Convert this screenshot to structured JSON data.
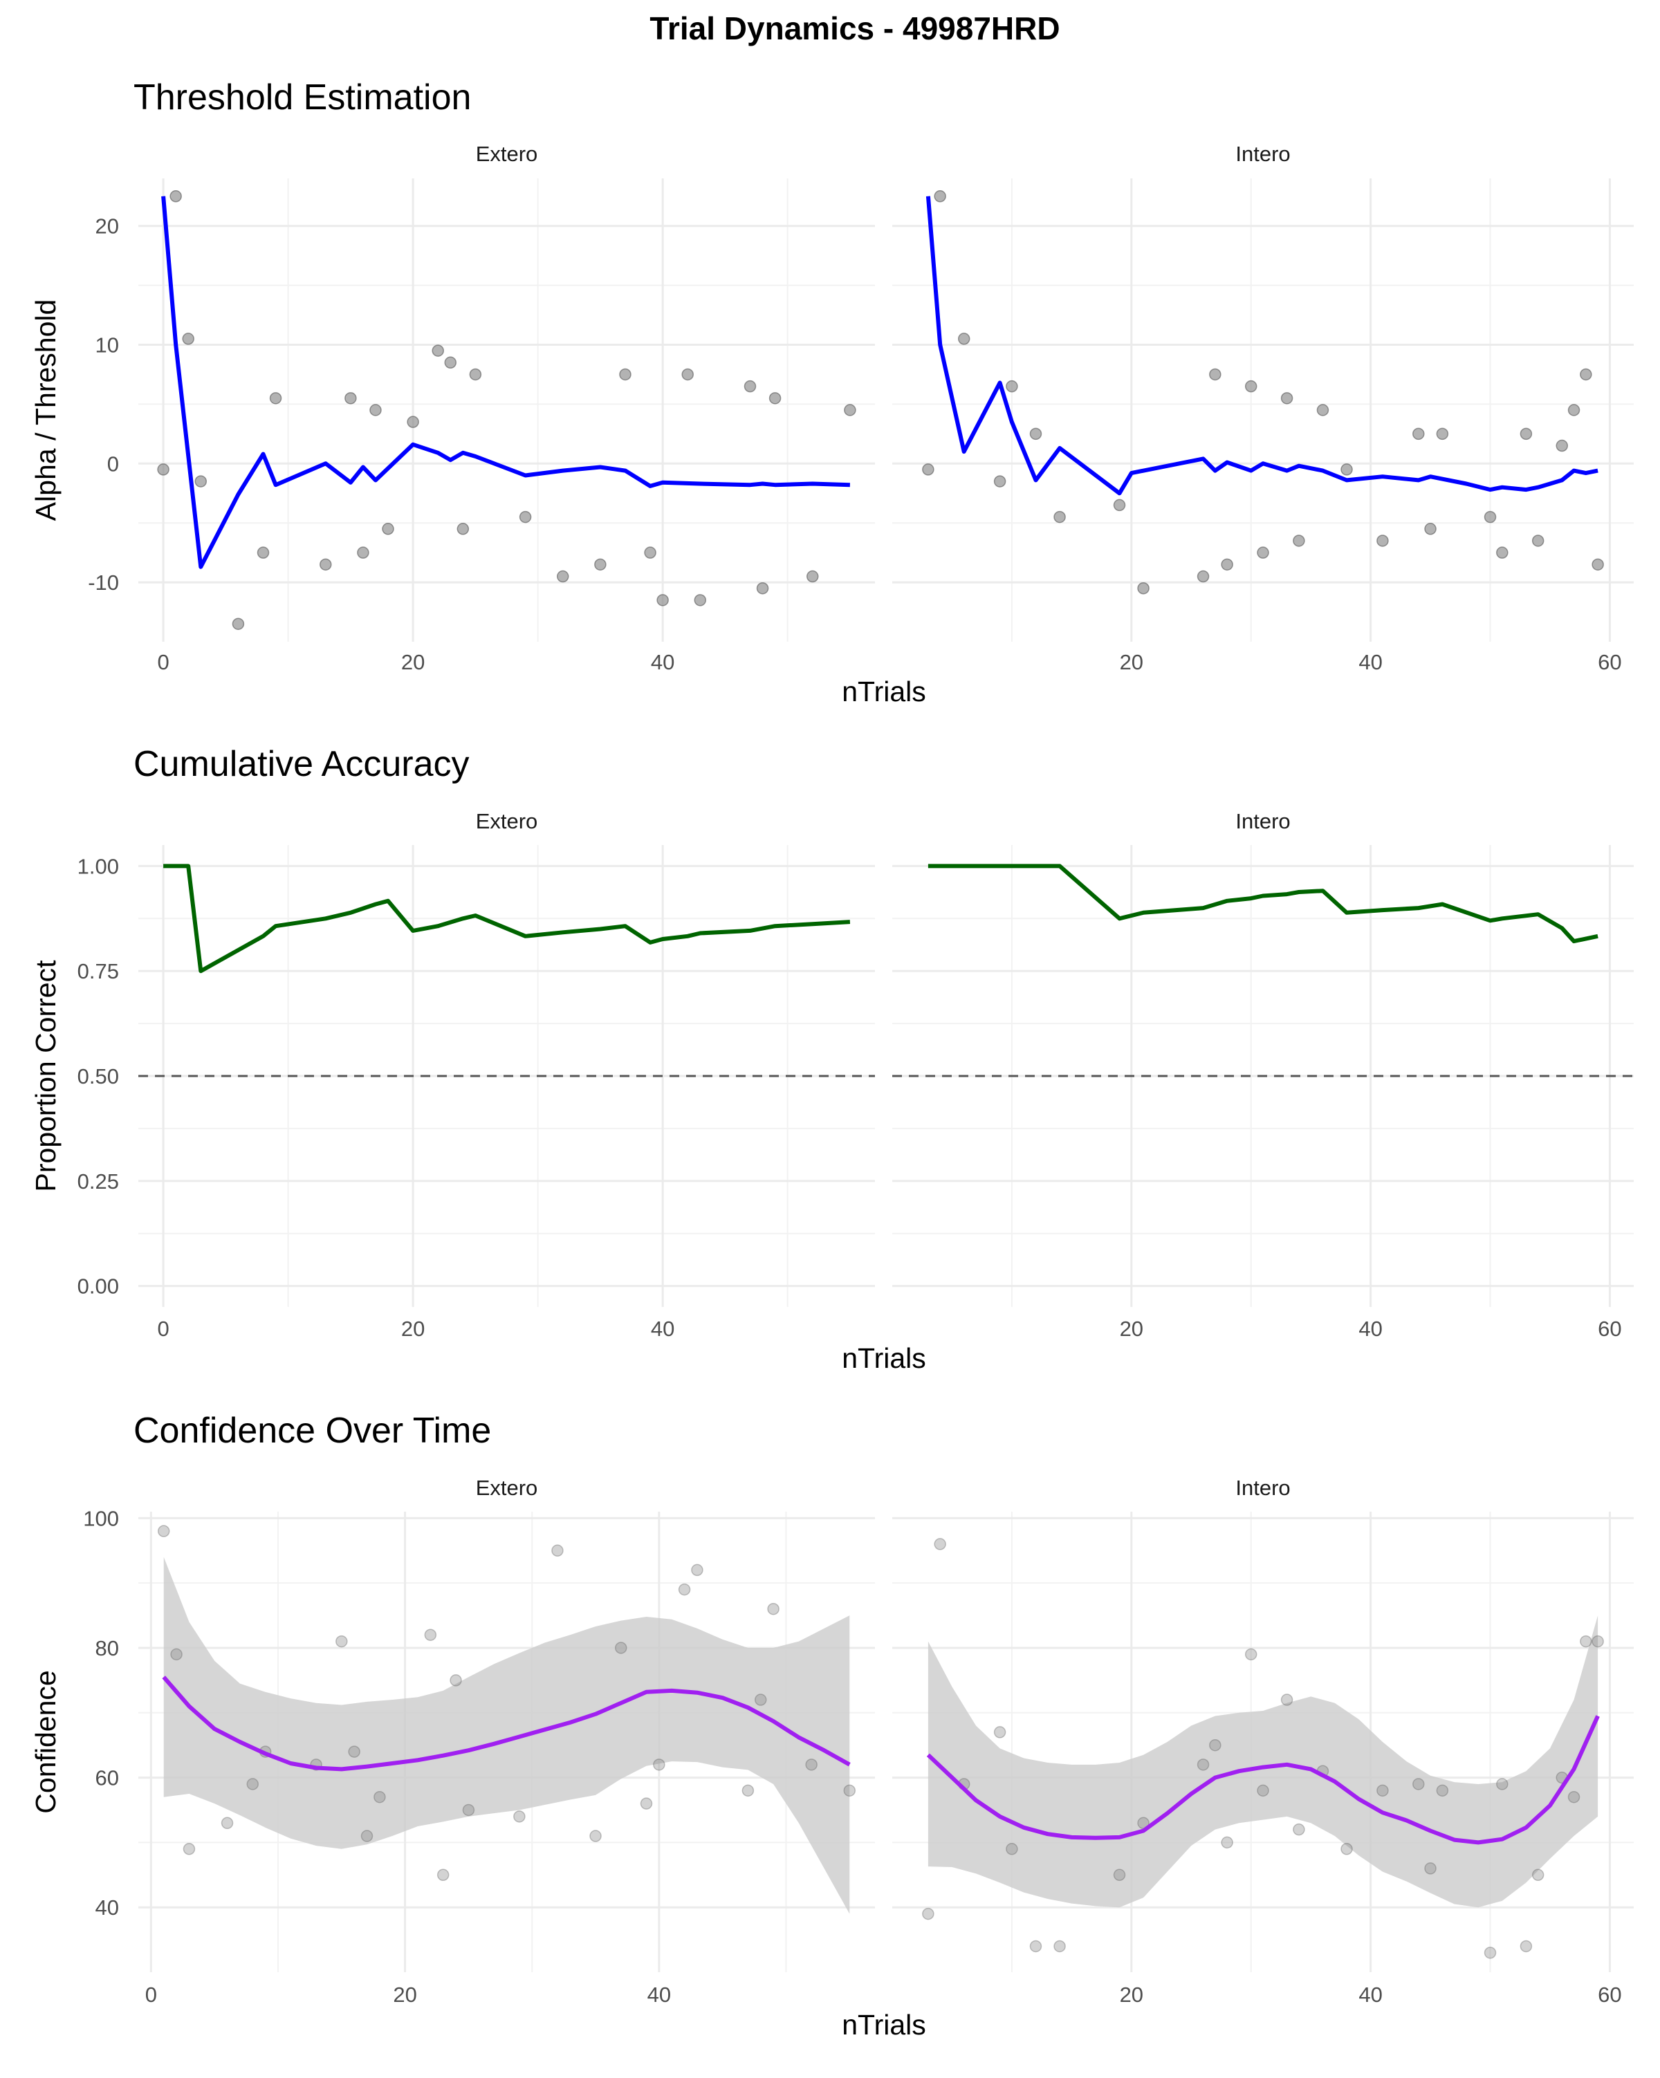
{
  "figure": {
    "title": "Trial Dynamics - 49987HRD",
    "facet_labels": [
      "Extero",
      "Intero"
    ]
  },
  "colors": {
    "threshold_line": "#0000ff",
    "accuracy_line": "#006400",
    "confidence_line": "#a020f0",
    "points": "#808080",
    "ribbon": "#cccccc",
    "chance_line": "#555555",
    "grid": "#ebebeb"
  },
  "chart_data": [
    {
      "type": "line",
      "title": "Threshold Estimation",
      "xlabel": "nTrials",
      "ylabel": "Alpha / Threshold",
      "ylim": [
        -15,
        24
      ],
      "yticks": [
        -10,
        0,
        10,
        20
      ],
      "ytick_labels": [
        "-10",
        "0",
        "10",
        "20"
      ],
      "grid": true,
      "panels": [
        {
          "facet": "Extero",
          "xlim": [
            -2,
            57
          ],
          "xticks": [
            0,
            20,
            40
          ],
          "series": [
            {
              "kind": "line",
              "x": [
                0,
                1,
                3,
                6,
                8,
                9,
                13,
                15,
                16,
                17,
                20,
                22,
                23,
                24,
                25,
                29,
                32,
                35,
                37,
                39,
                40,
                43,
                47,
                48,
                49,
                52,
                55
              ],
              "y": [
                22.5,
                10,
                -8.7,
                -2.6,
                0.8,
                -1.8,
                0,
                -1.6,
                -0.3,
                -1.4,
                1.6,
                0.9,
                0.3,
                0.9,
                0.6,
                -1,
                -0.6,
                -0.3,
                -0.6,
                -1.9,
                -1.6,
                -1.7,
                -1.8,
                -1.7,
                -1.8,
                -1.7,
                -1.8
              ]
            },
            {
              "kind": "points",
              "x": [
                0,
                1,
                2,
                3,
                6,
                8,
                9,
                13,
                15,
                16,
                17,
                18,
                20,
                22,
                23,
                24,
                25,
                29,
                32,
                35,
                37,
                39,
                40,
                42,
                43,
                47,
                48,
                49,
                52,
                55
              ],
              "y": [
                -0.5,
                22.5,
                10.5,
                -1.5,
                -13.5,
                -7.5,
                5.5,
                -8.5,
                5.5,
                -7.5,
                4.5,
                -5.5,
                3.5,
                9.5,
                8.5,
                -5.5,
                7.5,
                -4.5,
                -9.5,
                -8.5,
                7.5,
                -7.5,
                -11.5,
                7.5,
                -11.5,
                6.5,
                -10.5,
                5.5,
                -9.5,
                4.5
              ]
            }
          ]
        },
        {
          "facet": "Intero",
          "xlim": [
            0,
            62
          ],
          "xticks": [
            20,
            40,
            60
          ],
          "series": [
            {
              "kind": "line",
              "x": [
                3,
                4,
                6,
                9,
                10,
                12,
                14,
                19,
                20,
                26,
                27,
                28,
                30,
                31,
                33,
                34,
                36,
                38,
                41,
                44,
                45,
                48,
                50,
                51,
                53,
                54,
                56,
                57,
                58,
                59
              ],
              "y": [
                22.5,
                10,
                1,
                6.8,
                3.5,
                -1.4,
                1.3,
                -2.5,
                -0.8,
                0.4,
                -0.6,
                0.1,
                -0.6,
                0,
                -0.6,
                -0.2,
                -0.6,
                -1.4,
                -1.1,
                -1.4,
                -1.1,
                -1.7,
                -2.2,
                -2,
                -2.2,
                -2,
                -1.4,
                -0.6,
                -0.8,
                -0.6
              ]
            },
            {
              "kind": "points",
              "x": [
                3,
                4,
                6,
                9,
                10,
                12,
                14,
                19,
                21,
                26,
                27,
                28,
                30,
                31,
                33,
                34,
                36,
                38,
                41,
                44,
                45,
                46,
                50,
                51,
                53,
                54,
                56,
                57,
                58,
                59
              ],
              "y": [
                -0.5,
                22.5,
                10.5,
                -1.5,
                6.5,
                2.5,
                -4.5,
                -3.5,
                -10.5,
                -9.5,
                7.5,
                -8.5,
                6.5,
                -7.5,
                5.5,
                -6.5,
                4.5,
                -0.5,
                -6.5,
                2.5,
                -5.5,
                2.5,
                -4.5,
                -7.5,
                2.5,
                -6.5,
                1.5,
                4.5,
                7.5,
                -8.5
              ]
            }
          ]
        }
      ]
    },
    {
      "type": "line",
      "title": "Cumulative Accuracy",
      "xlabel": "nTrials",
      "ylabel": "Proportion Correct",
      "ylim": [
        -0.05,
        1.05
      ],
      "yticks": [
        0,
        0.25,
        0.5,
        0.75,
        1
      ],
      "ytick_labels": [
        "0.00",
        "0.25",
        "0.50",
        "0.75",
        "1.00"
      ],
      "reference_line_y": 0.5,
      "grid": true,
      "panels": [
        {
          "facet": "Extero",
          "xlim": [
            -2,
            57
          ],
          "xticks": [
            0,
            20,
            40
          ],
          "series": [
            {
              "kind": "line",
              "x": [
                0,
                2,
                3,
                8,
                9,
                13,
                15,
                17,
                18,
                20,
                22,
                24,
                25,
                29,
                32,
                35,
                37,
                39,
                40,
                42,
                43,
                47,
                49,
                52,
                55
              ],
              "y": [
                1,
                1,
                0.75,
                0.833,
                0.857,
                0.875,
                0.889,
                0.909,
                0.917,
                0.846,
                0.857,
                0.875,
                0.882,
                0.833,
                0.842,
                0.85,
                0.857,
                0.818,
                0.826,
                0.833,
                0.84,
                0.846,
                0.857,
                0.862,
                0.867
              ]
            }
          ]
        },
        {
          "facet": "Intero",
          "xlim": [
            0,
            62
          ],
          "xticks": [
            20,
            40,
            60
          ],
          "series": [
            {
              "kind": "line",
              "x": [
                3,
                14,
                19,
                21,
                26,
                28,
                30,
                31,
                33,
                34,
                36,
                38,
                41,
                44,
                46,
                50,
                51,
                54,
                56,
                57,
                59
              ],
              "y": [
                1,
                1,
                0.875,
                0.889,
                0.9,
                0.917,
                0.923,
                0.929,
                0.933,
                0.938,
                0.941,
                0.889,
                0.895,
                0.9,
                0.909,
                0.87,
                0.875,
                0.885,
                0.852,
                0.821,
                0.833
              ]
            }
          ]
        }
      ]
    },
    {
      "type": "line",
      "title": "Confidence Over Time",
      "xlabel": "nTrials",
      "ylabel": "Confidence",
      "ylim": [
        30,
        101
      ],
      "yticks": [
        40,
        60,
        80,
        100
      ],
      "ytick_labels": [
        "40",
        "60",
        "80",
        "100"
      ],
      "grid": true,
      "panels": [
        {
          "facet": "Extero",
          "xlim": [
            -1,
            57
          ],
          "xticks": [
            0,
            20,
            40
          ],
          "series": [
            {
              "kind": "band",
              "x": [
                1,
                3,
                5,
                7,
                9,
                11,
                13,
                15,
                17,
                19,
                21,
                23,
                25,
                27,
                29,
                31,
                33,
                35,
                37,
                39,
                41,
                43,
                45,
                47,
                49,
                51,
                53,
                55
              ],
              "upper": [
                94,
                84,
                78,
                74.5,
                73.2,
                72.2,
                71.5,
                71.2,
                71.7,
                72,
                72.4,
                73.4,
                75.5,
                77.5,
                79.2,
                80.8,
                82,
                83.3,
                84.2,
                84.8,
                84.4,
                83,
                81.3,
                80,
                80,
                81,
                83,
                85
              ],
              "lower": [
                57,
                57.5,
                56,
                54.2,
                52.3,
                50.6,
                49.5,
                49,
                49.7,
                51,
                52.5,
                53.2,
                54,
                54.5,
                55,
                55.8,
                56.6,
                57.3,
                59.8,
                61.8,
                62.5,
                62.4,
                61.6,
                61.2,
                59,
                53,
                46,
                39
              ]
            },
            {
              "kind": "line",
              "x": [
                1,
                3,
                5,
                7,
                9,
                11,
                13,
                15,
                17,
                19,
                21,
                23,
                25,
                27,
                29,
                31,
                33,
                35,
                37,
                39,
                41,
                43,
                45,
                47,
                49,
                51,
                53,
                55
              ],
              "y": [
                75.5,
                71,
                67.5,
                65.5,
                63.7,
                62.2,
                61.5,
                61.3,
                61.7,
                62.2,
                62.7,
                63.4,
                64.2,
                65.2,
                66.3,
                67.4,
                68.5,
                69.8,
                71.5,
                73.2,
                73.4,
                73.1,
                72.3,
                70.8,
                68.7,
                66.2,
                64.2,
                62
              ]
            },
            {
              "kind": "points",
              "x": [
                1,
                2,
                3,
                6,
                8,
                9,
                13,
                15,
                16,
                17,
                18,
                22,
                23,
                24,
                25,
                29,
                32,
                35,
                37,
                39,
                40,
                42,
                43,
                47,
                48,
                49,
                52,
                55
              ],
              "y": [
                98,
                79,
                49,
                53,
                59,
                64,
                62,
                81,
                64,
                51,
                57,
                82,
                45,
                75,
                55,
                54,
                95,
                51,
                80,
                56,
                62,
                89,
                92,
                58,
                72,
                86,
                62,
                58
              ]
            }
          ]
        },
        {
          "facet": "Intero",
          "xlim": [
            0,
            62
          ],
          "xticks": [
            20,
            40,
            60
          ],
          "series": [
            {
              "kind": "band",
              "x": [
                3,
                5,
                7,
                9,
                11,
                13,
                15,
                17,
                19,
                21,
                23,
                25,
                27,
                29,
                31,
                33,
                35,
                37,
                39,
                41,
                43,
                45,
                47,
                49,
                51,
                53,
                55,
                57,
                59
              ],
              "upper": [
                81,
                74,
                68,
                64.5,
                63,
                62.3,
                62,
                62,
                62.3,
                63.5,
                65.5,
                68,
                69.5,
                70,
                70.3,
                71.5,
                72.5,
                71.5,
                69,
                65.5,
                62.5,
                60.3,
                59.3,
                59,
                59.3,
                61,
                64.5,
                72,
                85
              ],
              "lower": [
                46.3,
                46.2,
                45.2,
                43.8,
                42.3,
                41.3,
                40.6,
                40.2,
                40,
                41.5,
                45.5,
                49.5,
                52,
                53,
                53.5,
                54,
                53,
                51,
                48,
                45.5,
                44,
                42.2,
                40.5,
                40,
                41,
                43.8,
                47.5,
                51,
                54
              ]
            },
            {
              "kind": "line",
              "x": [
                3,
                5,
                7,
                9,
                11,
                13,
                15,
                17,
                19,
                21,
                23,
                25,
                27,
                29,
                31,
                33,
                35,
                37,
                39,
                41,
                43,
                45,
                47,
                49,
                51,
                53,
                55,
                57,
                59
              ],
              "y": [
                63.5,
                60,
                56.5,
                54,
                52.3,
                51.3,
                50.8,
                50.7,
                50.8,
                51.8,
                54.5,
                57.5,
                60,
                61,
                61.6,
                62,
                61.3,
                59.4,
                56.7,
                54.6,
                53.4,
                51.8,
                50.4,
                50,
                50.5,
                52.3,
                55.7,
                61.3,
                69.5
              ]
            },
            {
              "kind": "points",
              "x": [
                3,
                4,
                6,
                9,
                10,
                12,
                14,
                19,
                21,
                26,
                27,
                28,
                30,
                31,
                33,
                34,
                36,
                38,
                41,
                44,
                45,
                46,
                50,
                51,
                53,
                54,
                56,
                57,
                58,
                59
              ],
              "y": [
                39,
                96,
                59,
                67,
                49,
                34,
                34,
                45,
                53,
                62,
                65,
                50,
                79,
                58,
                72,
                52,
                61,
                49,
                58,
                59,
                46,
                58,
                33,
                59,
                34,
                45,
                60,
                57,
                81,
                81
              ]
            }
          ]
        }
      ]
    }
  ]
}
